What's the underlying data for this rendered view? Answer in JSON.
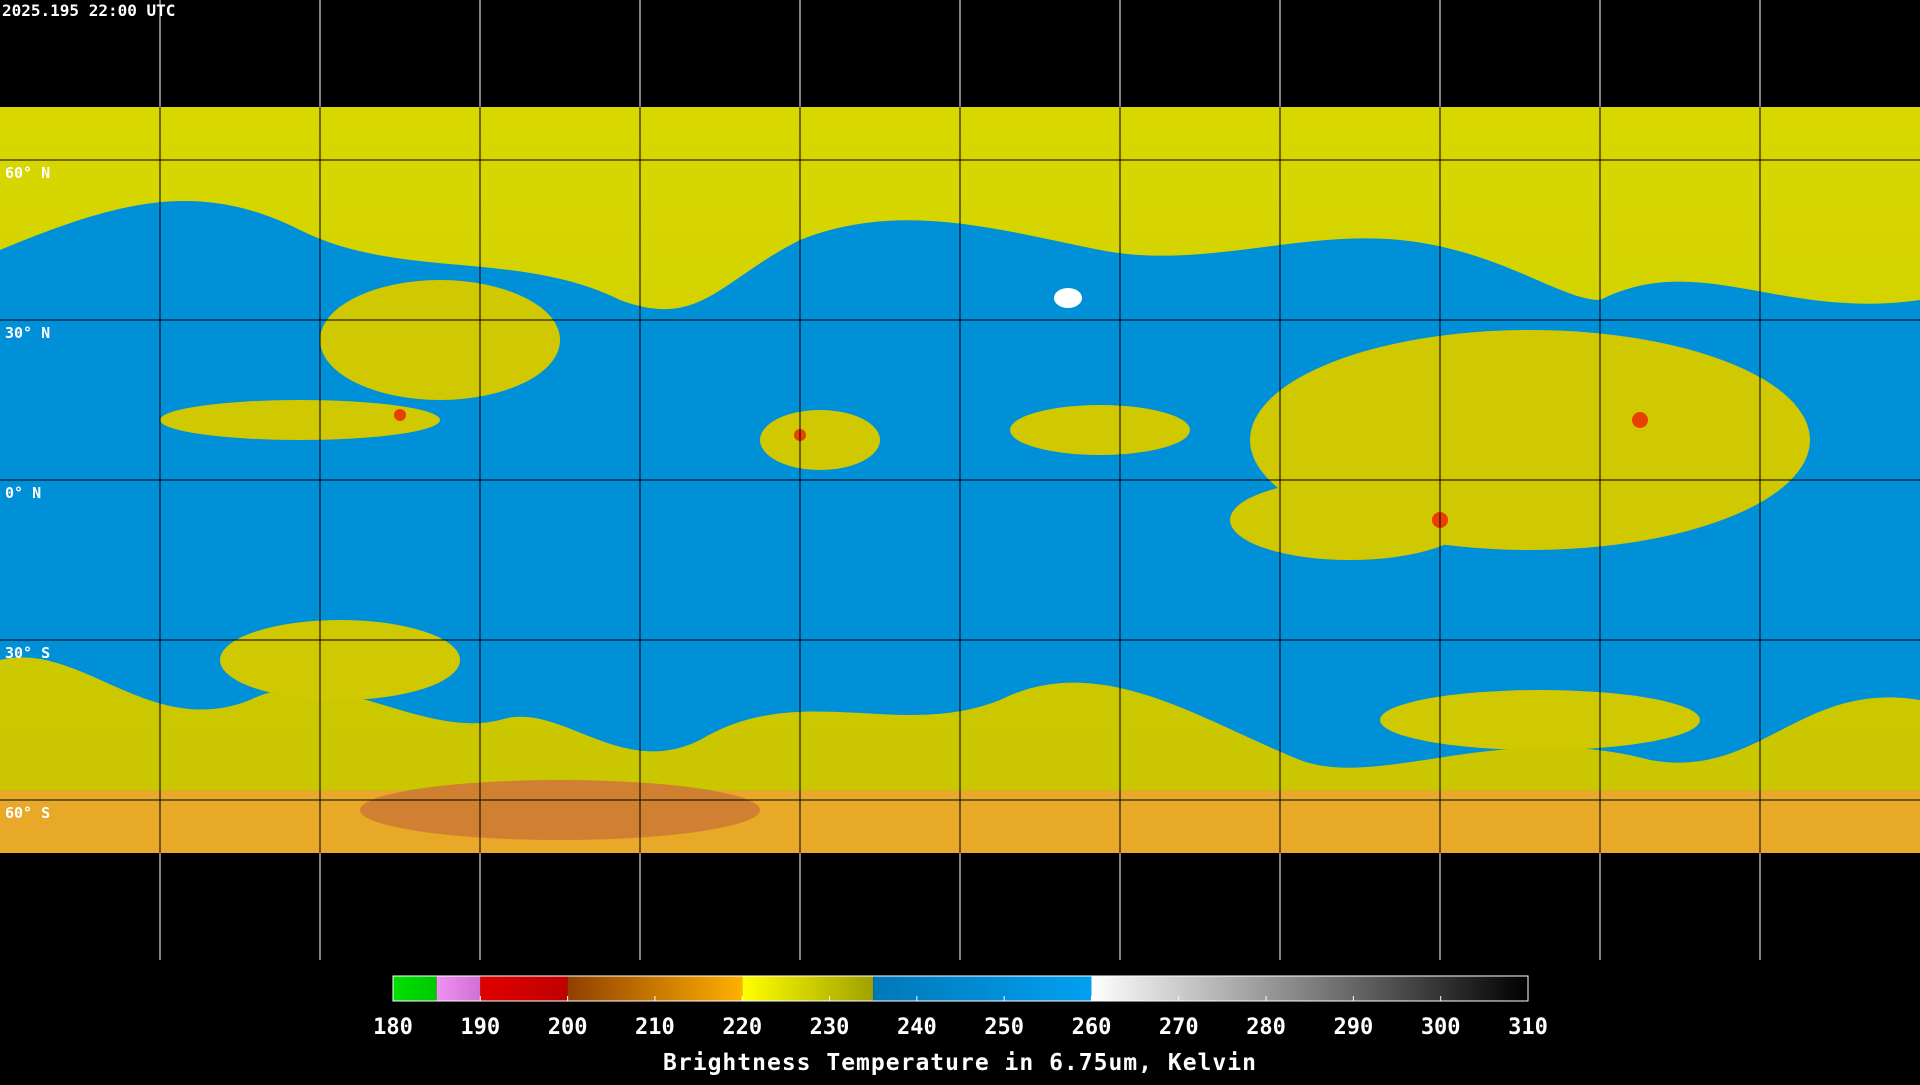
{
  "header": {
    "timestamp": "2025.195 22:00 UTC"
  },
  "map": {
    "lat_ticks": [
      {
        "value": 60,
        "label": "60° N"
      },
      {
        "value": 30,
        "label": "30° N"
      },
      {
        "value": 0,
        "label": "0° N"
      },
      {
        "value": -30,
        "label": "30° S"
      },
      {
        "value": -60,
        "label": "60° S"
      }
    ]
  },
  "colorbar": {
    "label": "Brightness Temperature in 6.75um, Kelvin",
    "range": [
      180,
      310
    ],
    "ticks": [
      180,
      190,
      200,
      210,
      220,
      230,
      240,
      250,
      260,
      270,
      280,
      290,
      300,
      310
    ],
    "segments": [
      {
        "from": 180,
        "to": 185,
        "colors": [
          "#00e000",
          "#00c800"
        ]
      },
      {
        "from": 185,
        "to": 190,
        "colors": [
          "#f090f0",
          "#d070d0"
        ]
      },
      {
        "from": 190,
        "to": 200,
        "colors": [
          "#e00000",
          "#c00000"
        ]
      },
      {
        "from": 200,
        "to": 220,
        "colors": [
          "#904000",
          "#ffb000"
        ]
      },
      {
        "from": 220,
        "to": 235,
        "colors": [
          "#ffff00",
          "#a0a000"
        ]
      },
      {
        "from": 235,
        "to": 260,
        "colors": [
          "#0078b8",
          "#00a0f0"
        ]
      },
      {
        "from": 260,
        "to": 310,
        "colors": [
          "#ffffff",
          "#000000"
        ]
      }
    ]
  }
}
